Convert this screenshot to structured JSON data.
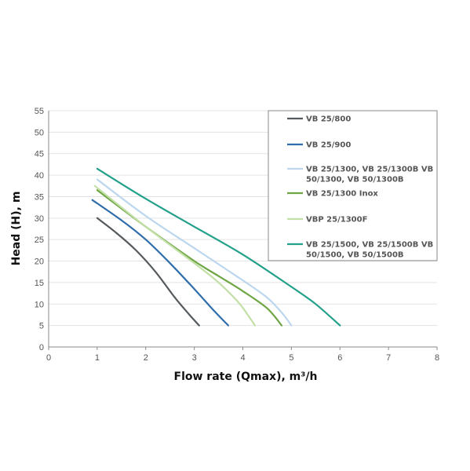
{
  "chart_data": {
    "type": "line",
    "xlabel": "Flow rate (Qmax), m³/h",
    "ylabel": "Head (H), m",
    "xlim": [
      0,
      8
    ],
    "ylim": [
      0,
      55
    ],
    "xticks": [
      0,
      1,
      2,
      3,
      4,
      5,
      6,
      7,
      8
    ],
    "yticks": [
      0,
      5,
      10,
      15,
      20,
      25,
      30,
      35,
      40,
      45,
      50,
      55
    ],
    "grid": "horizontal",
    "legend_position": "top-right",
    "series": [
      {
        "name": "VB 25/800",
        "color": "#555a5e",
        "points": [
          [
            1.0,
            30.0
          ],
          [
            1.4,
            26.5
          ],
          [
            1.8,
            22.5
          ],
          [
            2.2,
            17.5
          ],
          [
            2.6,
            11.5
          ],
          [
            2.9,
            7.5
          ],
          [
            3.1,
            5.0
          ]
        ]
      },
      {
        "name": "VB 25/900",
        "color": "#2f6eab",
        "points": [
          [
            0.9,
            34.2
          ],
          [
            1.5,
            29.5
          ],
          [
            2.0,
            25.0
          ],
          [
            2.5,
            19.5
          ],
          [
            3.0,
            13.5
          ],
          [
            3.4,
            8.5
          ],
          [
            3.7,
            5.0
          ]
        ]
      },
      {
        "name": "VB 25/1300, VB 25/1300B  VB 50/1300, VB 50/1300B",
        "color": "#bcd6ee",
        "points": [
          [
            1.0,
            39.0
          ],
          [
            2.0,
            30.5
          ],
          [
            3.0,
            23.0
          ],
          [
            4.0,
            15.5
          ],
          [
            4.5,
            11.5
          ],
          [
            4.8,
            8.0
          ],
          [
            5.0,
            5.0
          ]
        ]
      },
      {
        "name": "VB 25/1300 Inox",
        "color": "#6ea644",
        "points": [
          [
            1.0,
            36.5
          ],
          [
            2.0,
            28.0
          ],
          [
            3.0,
            20.0
          ],
          [
            3.5,
            16.5
          ],
          [
            4.0,
            13.0
          ],
          [
            4.5,
            9.0
          ],
          [
            4.8,
            5.0
          ]
        ]
      },
      {
        "name": "VBP 25/1300F",
        "color": "#c2dfa6",
        "points": [
          [
            0.95,
            37.5
          ],
          [
            2.0,
            28.0
          ],
          [
            3.0,
            19.5
          ],
          [
            3.5,
            15.0
          ],
          [
            3.9,
            10.5
          ],
          [
            4.1,
            7.5
          ],
          [
            4.25,
            5.0
          ]
        ]
      },
      {
        "name": "VB 25/1500, VB 25/1500B VB 50/1500, VB 50/1500B",
        "color": "#22a08a",
        "points": [
          [
            1.0,
            41.5
          ],
          [
            2.0,
            34.5
          ],
          [
            3.0,
            28.0
          ],
          [
            4.0,
            21.5
          ],
          [
            5.0,
            14.0
          ],
          [
            5.5,
            10.0
          ],
          [
            6.0,
            5.0
          ]
        ]
      }
    ]
  },
  "legend": {
    "entries": [
      {
        "lines": [
          "VB 25/800"
        ]
      },
      {
        "lines": [
          "VB 25/900"
        ]
      },
      {
        "lines": [
          "VB 25/1300, VB 25/1300B  VB",
          "50/1300, VB 50/1300B"
        ]
      },
      {
        "lines": [
          "VB 25/1300 Inox"
        ]
      },
      {
        "lines": [
          "VBP 25/1300F"
        ]
      },
      {
        "lines": [
          "VB 25/1500, VB 25/1500B VB",
          "50/1500, VB 50/1500B"
        ]
      }
    ]
  }
}
